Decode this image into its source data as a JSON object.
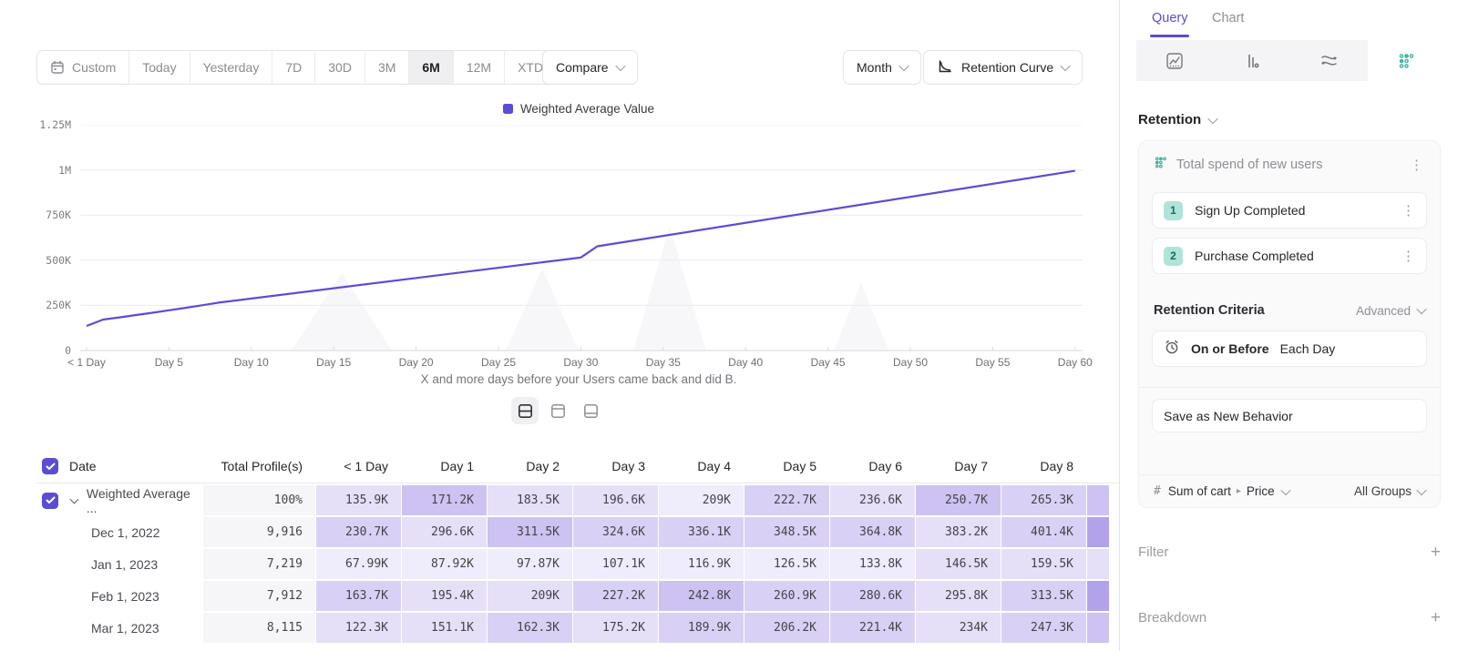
{
  "accent": "#5b4cd6",
  "teal": "#3fb3a0",
  "toolbar": {
    "ranges": [
      "Custom",
      "Today",
      "Yesterday",
      "7D",
      "30D",
      "3M",
      "6M",
      "12M",
      "XTD"
    ],
    "selected_range": "6M",
    "range_with_icon": "Custom",
    "range_with_chevron": "XTD",
    "compare_label": "Compare",
    "granularity_label": "Month",
    "chart_type_label": "Retention Curve"
  },
  "chart": {
    "legend": "Weighted Average Value",
    "caption": "X and more days before your Users came back and did B."
  },
  "chart_data": {
    "type": "line",
    "title": "",
    "xlabel": "X and more days before your Users came back and did B.",
    "ylabel": "",
    "ylim_k": [
      0,
      1250
    ],
    "y_tick_labels_top_to_bottom": [
      "1.25M",
      "1M",
      "750K",
      "500K",
      "250K",
      "0"
    ],
    "y_tick_values_k_top_to_bottom": [
      1250,
      1000,
      750,
      500,
      250,
      0
    ],
    "x_tick_days": [
      0,
      5,
      10,
      15,
      20,
      25,
      30,
      35,
      40,
      45,
      50,
      55,
      60
    ],
    "x_tick_labels": [
      "< 1 Day",
      "Day 5",
      "Day 10",
      "Day 15",
      "Day 20",
      "Day 25",
      "Day 30",
      "Day 35",
      "Day 40",
      "Day 45",
      "Day 50",
      "Day 55",
      "Day 60"
    ],
    "grid": true,
    "legend_position": "top",
    "series": [
      {
        "name": "Weighted Average Value",
        "color": "#5b4cd6",
        "keypoint_days": [
          0,
          1,
          2,
          3,
          4,
          5,
          6,
          7,
          8,
          30,
          31,
          60
        ],
        "keypoint_values_k": [
          135.9,
          171.2,
          183.5,
          196.6,
          209,
          222.7,
          236.6,
          250.7,
          265.3,
          515,
          577,
          995
        ]
      }
    ]
  },
  "view_toggle": {
    "modes": [
      "split",
      "table-top",
      "table-bottom"
    ],
    "selected": "split"
  },
  "table": {
    "columns": [
      "Date",
      "Total Profile(s)",
      "< 1 Day",
      "Day 1",
      "Day 2",
      "Day 3",
      "Day 4",
      "Day 5",
      "Day 6",
      "Day 7",
      "Day 8"
    ],
    "shade_palette": [
      "#efecfb",
      "#e5dff8",
      "#d9d1f5",
      "#cdc2f1",
      "#bfb2ee",
      "#b2a2ea"
    ],
    "rows": [
      {
        "label": "Weighted Average ...",
        "checked": true,
        "expandable": true,
        "total": "100%",
        "values": [
          "135.9K",
          "171.2K",
          "183.5K",
          "196.6K",
          "209K",
          "222.7K",
          "236.6K",
          "250.7K",
          "265.3K"
        ],
        "shades": [
          1,
          3,
          1,
          1,
          0,
          2,
          1,
          3,
          2
        ],
        "sliver_shade": 3
      },
      {
        "label": "Dec 1, 2022",
        "checked": false,
        "expandable": false,
        "total": "9,916",
        "values": [
          "230.7K",
          "296.6K",
          "311.5K",
          "324.6K",
          "336.1K",
          "348.5K",
          "364.8K",
          "383.2K",
          "401.4K"
        ],
        "shades": [
          2,
          1,
          3,
          2,
          2,
          2,
          2,
          1,
          2
        ],
        "sliver_shade": 5
      },
      {
        "label": "Jan 1, 2023",
        "checked": false,
        "expandable": false,
        "total": "7,219",
        "values": [
          "67.99K",
          "87.92K",
          "97.87K",
          "107.1K",
          "116.9K",
          "126.5K",
          "133.8K",
          "146.5K",
          "159.5K"
        ],
        "shades": [
          0,
          0,
          0,
          0,
          0,
          0,
          0,
          1,
          1
        ],
        "sliver_shade": 1
      },
      {
        "label": "Feb 1, 2023",
        "checked": false,
        "expandable": false,
        "total": "7,912",
        "values": [
          "163.7K",
          "195.4K",
          "209K",
          "227.2K",
          "242.8K",
          "260.9K",
          "280.6K",
          "295.8K",
          "313.5K"
        ],
        "shades": [
          2,
          1,
          1,
          2,
          3,
          2,
          2,
          1,
          2
        ],
        "sliver_shade": 5
      },
      {
        "label": "Mar 1, 2023",
        "checked": false,
        "expandable": false,
        "total": "8,115",
        "values": [
          "122.3K",
          "151.1K",
          "162.3K",
          "175.2K",
          "189.9K",
          "206.2K",
          "221.4K",
          "234K",
          "247.3K"
        ],
        "shades": [
          1,
          1,
          2,
          1,
          2,
          2,
          2,
          1,
          2
        ],
        "sliver_shade": 3
      }
    ]
  },
  "panel": {
    "tabs": [
      "Query",
      "Chart"
    ],
    "active_tab": "Query",
    "chart_type_tabs": [
      {
        "icon": "insights-line-icon",
        "active": false
      },
      {
        "icon": "funnel-bars-icon",
        "active": false
      },
      {
        "icon": "flow-icon",
        "active": false
      },
      {
        "icon": "retention-dots-icon",
        "active": true
      }
    ],
    "section_label": "Retention",
    "behavior": {
      "icon": "retention-dots-icon",
      "title": "Total spend of new users",
      "steps": [
        {
          "num": "1",
          "label": "Sign Up Completed"
        },
        {
          "num": "2",
          "label": "Purchase Completed"
        }
      ]
    },
    "criteria": {
      "label": "Retention Criteria",
      "mode": "Advanced",
      "timing_icon": "alarm-clock-icon",
      "timing_bold": "On or Before",
      "timing_rest": "Each Day"
    },
    "save_button": "Save as New Behavior",
    "measure": {
      "prefix": "#",
      "label": "Sum of cart",
      "property": "Price",
      "groups": "All Groups"
    },
    "filter_label": "Filter",
    "breakdown_label": "Breakdown"
  },
  "icons": [
    "calendar-icon",
    "chevron-down-icon",
    "retention-curve-icon",
    "checkbox-check-icon",
    "kebab-menu-icon",
    "alarm-clock-icon",
    "plus-icon",
    "insights-line-icon",
    "funnel-bars-icon",
    "flow-icon",
    "retention-dots-icon",
    "view-split-icon",
    "view-table-top-icon",
    "view-table-bottom-icon"
  ]
}
